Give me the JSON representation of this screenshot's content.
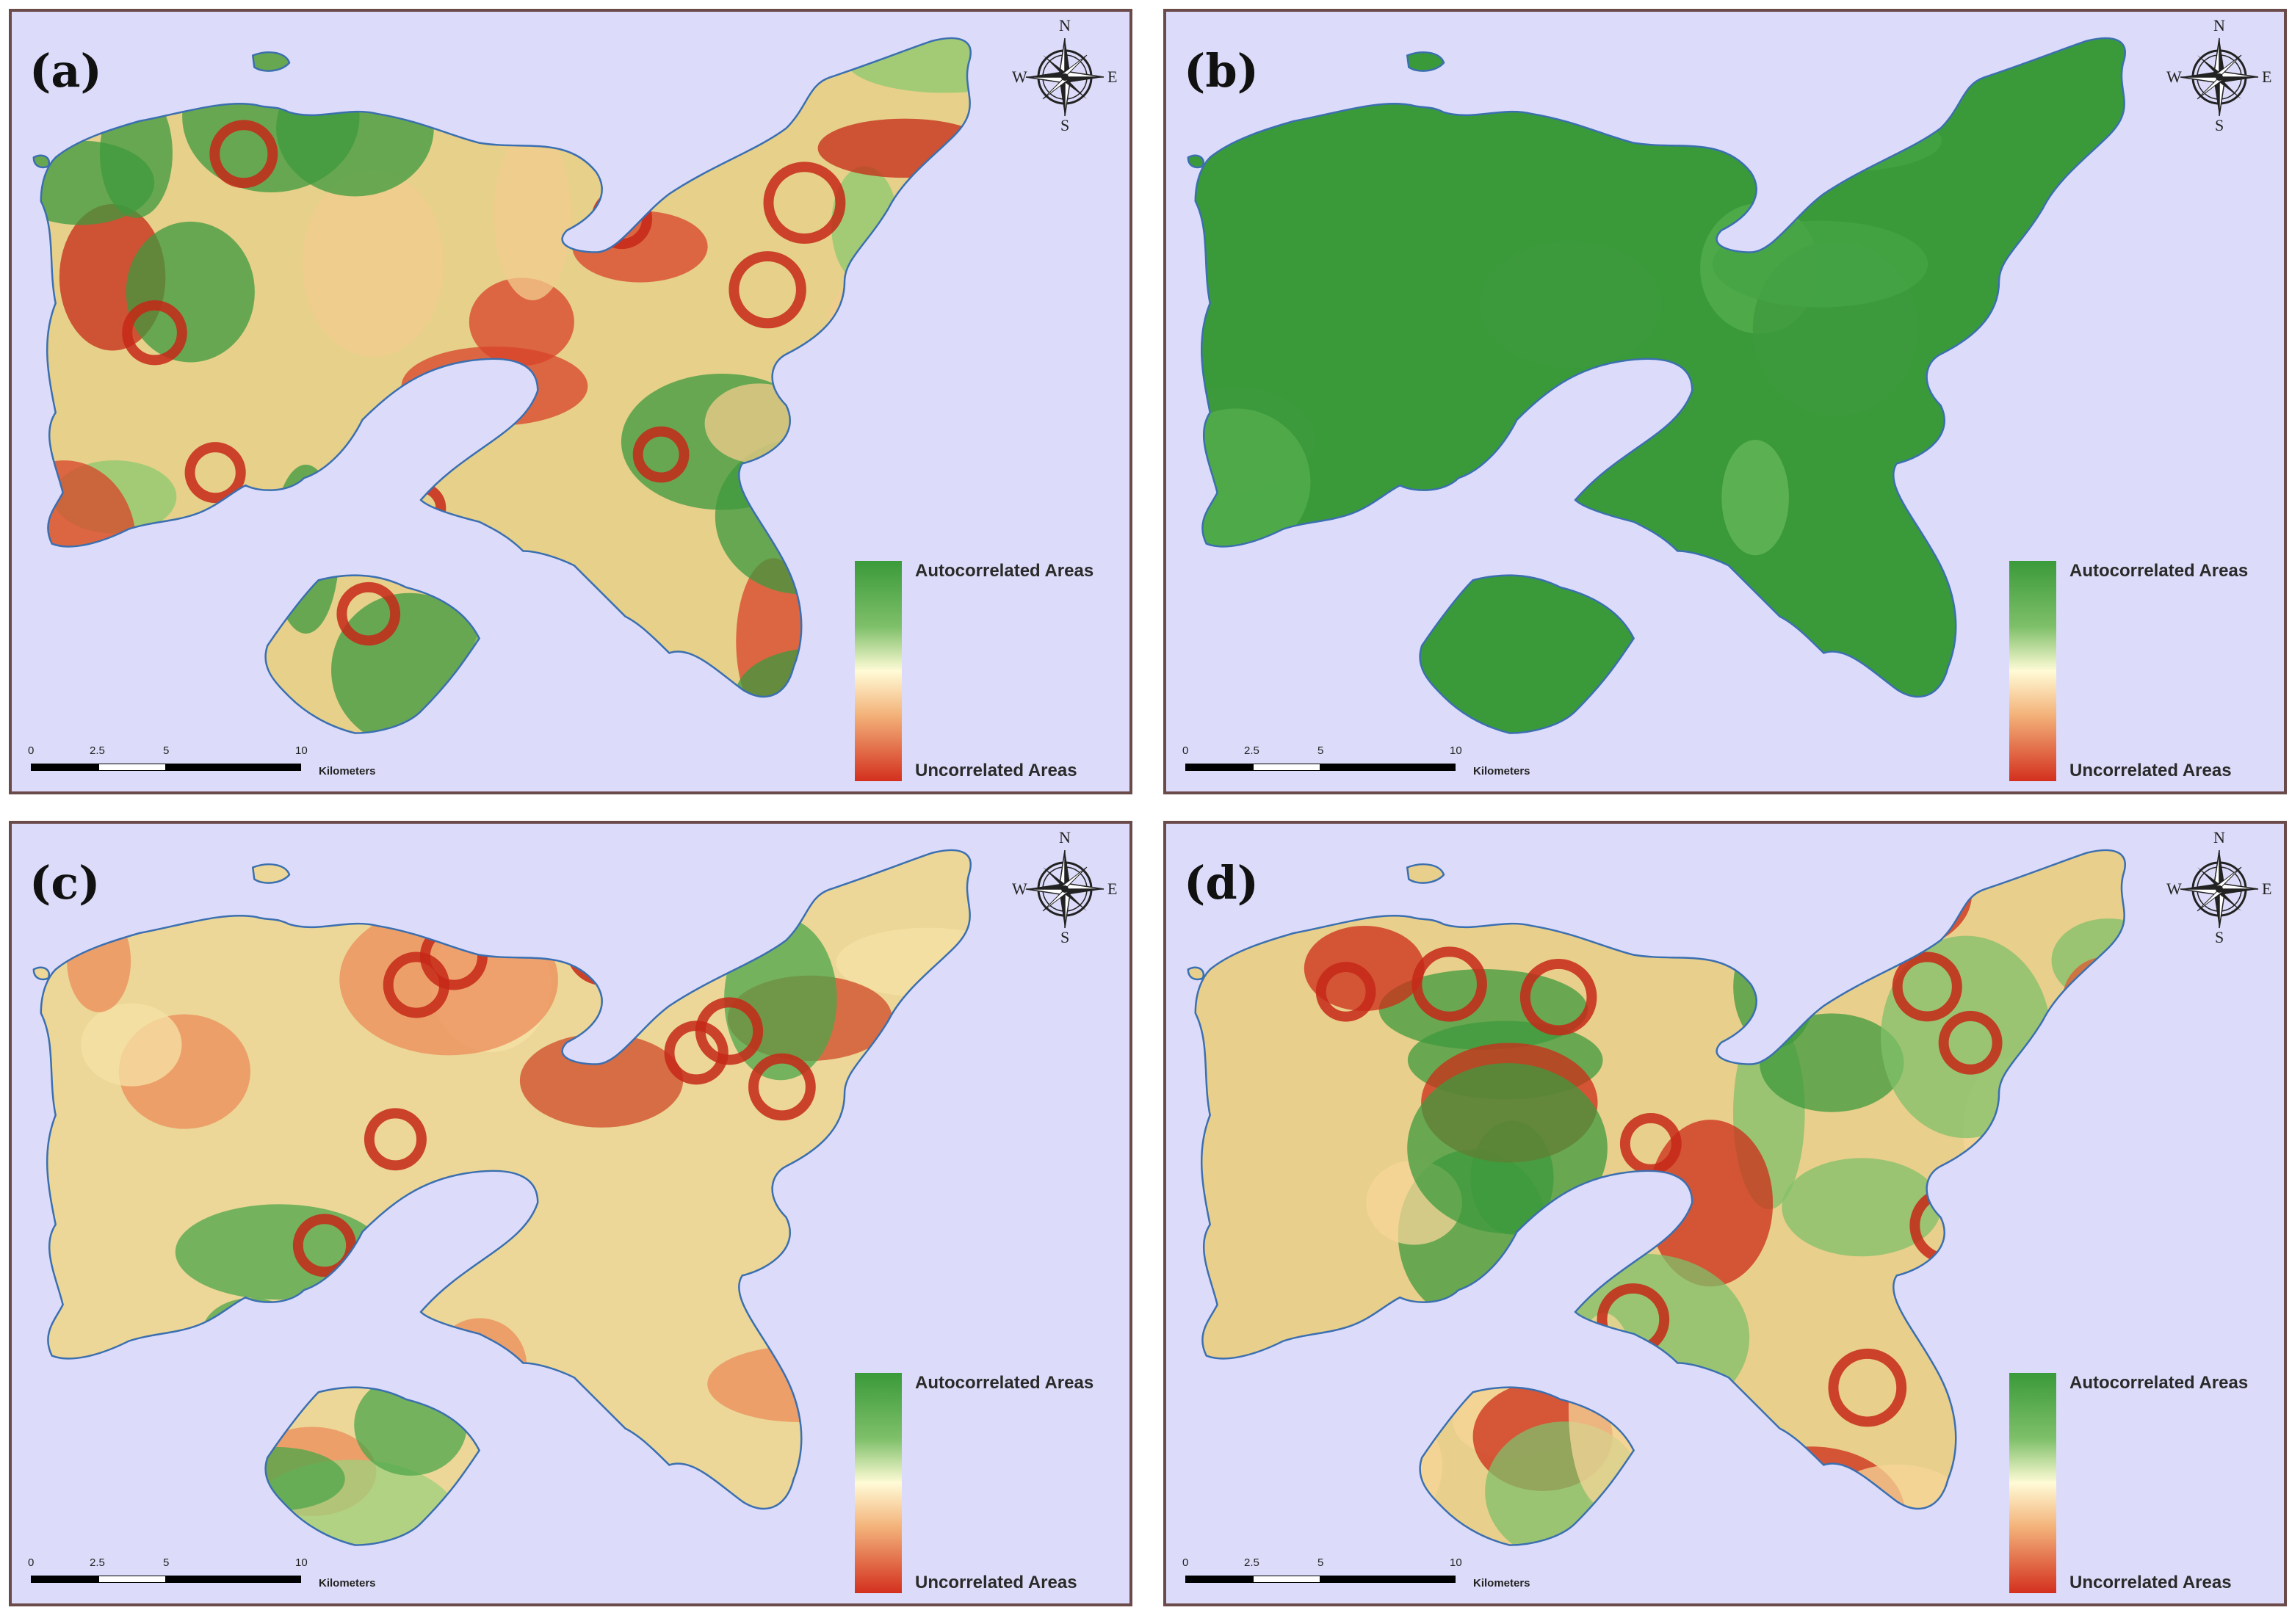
{
  "panels": [
    {
      "label": "(a)",
      "variant": "mixed"
    },
    {
      "label": "(b)",
      "variant": "green"
    },
    {
      "label": "(c)",
      "variant": "mixed-soft"
    },
    {
      "label": "(d)",
      "variant": "mixed-blocky"
    }
  ],
  "legend": {
    "top": "Autocorrelated Areas",
    "bottom": "Uncorrelated Areas",
    "colors": {
      "high": "#3a9a3a",
      "mid": "#fffbd6",
      "low": "#d3301e"
    }
  },
  "scale": {
    "ticks": [
      "0",
      "2.5",
      "5",
      "10"
    ],
    "unit": "Kilometers"
  },
  "compass": {
    "n": "N",
    "s": "S",
    "e": "E",
    "w": "W"
  },
  "colors": {
    "sea": "#dcdcfa",
    "coast": "#3b6fb0",
    "border": "#6b4a4a"
  }
}
